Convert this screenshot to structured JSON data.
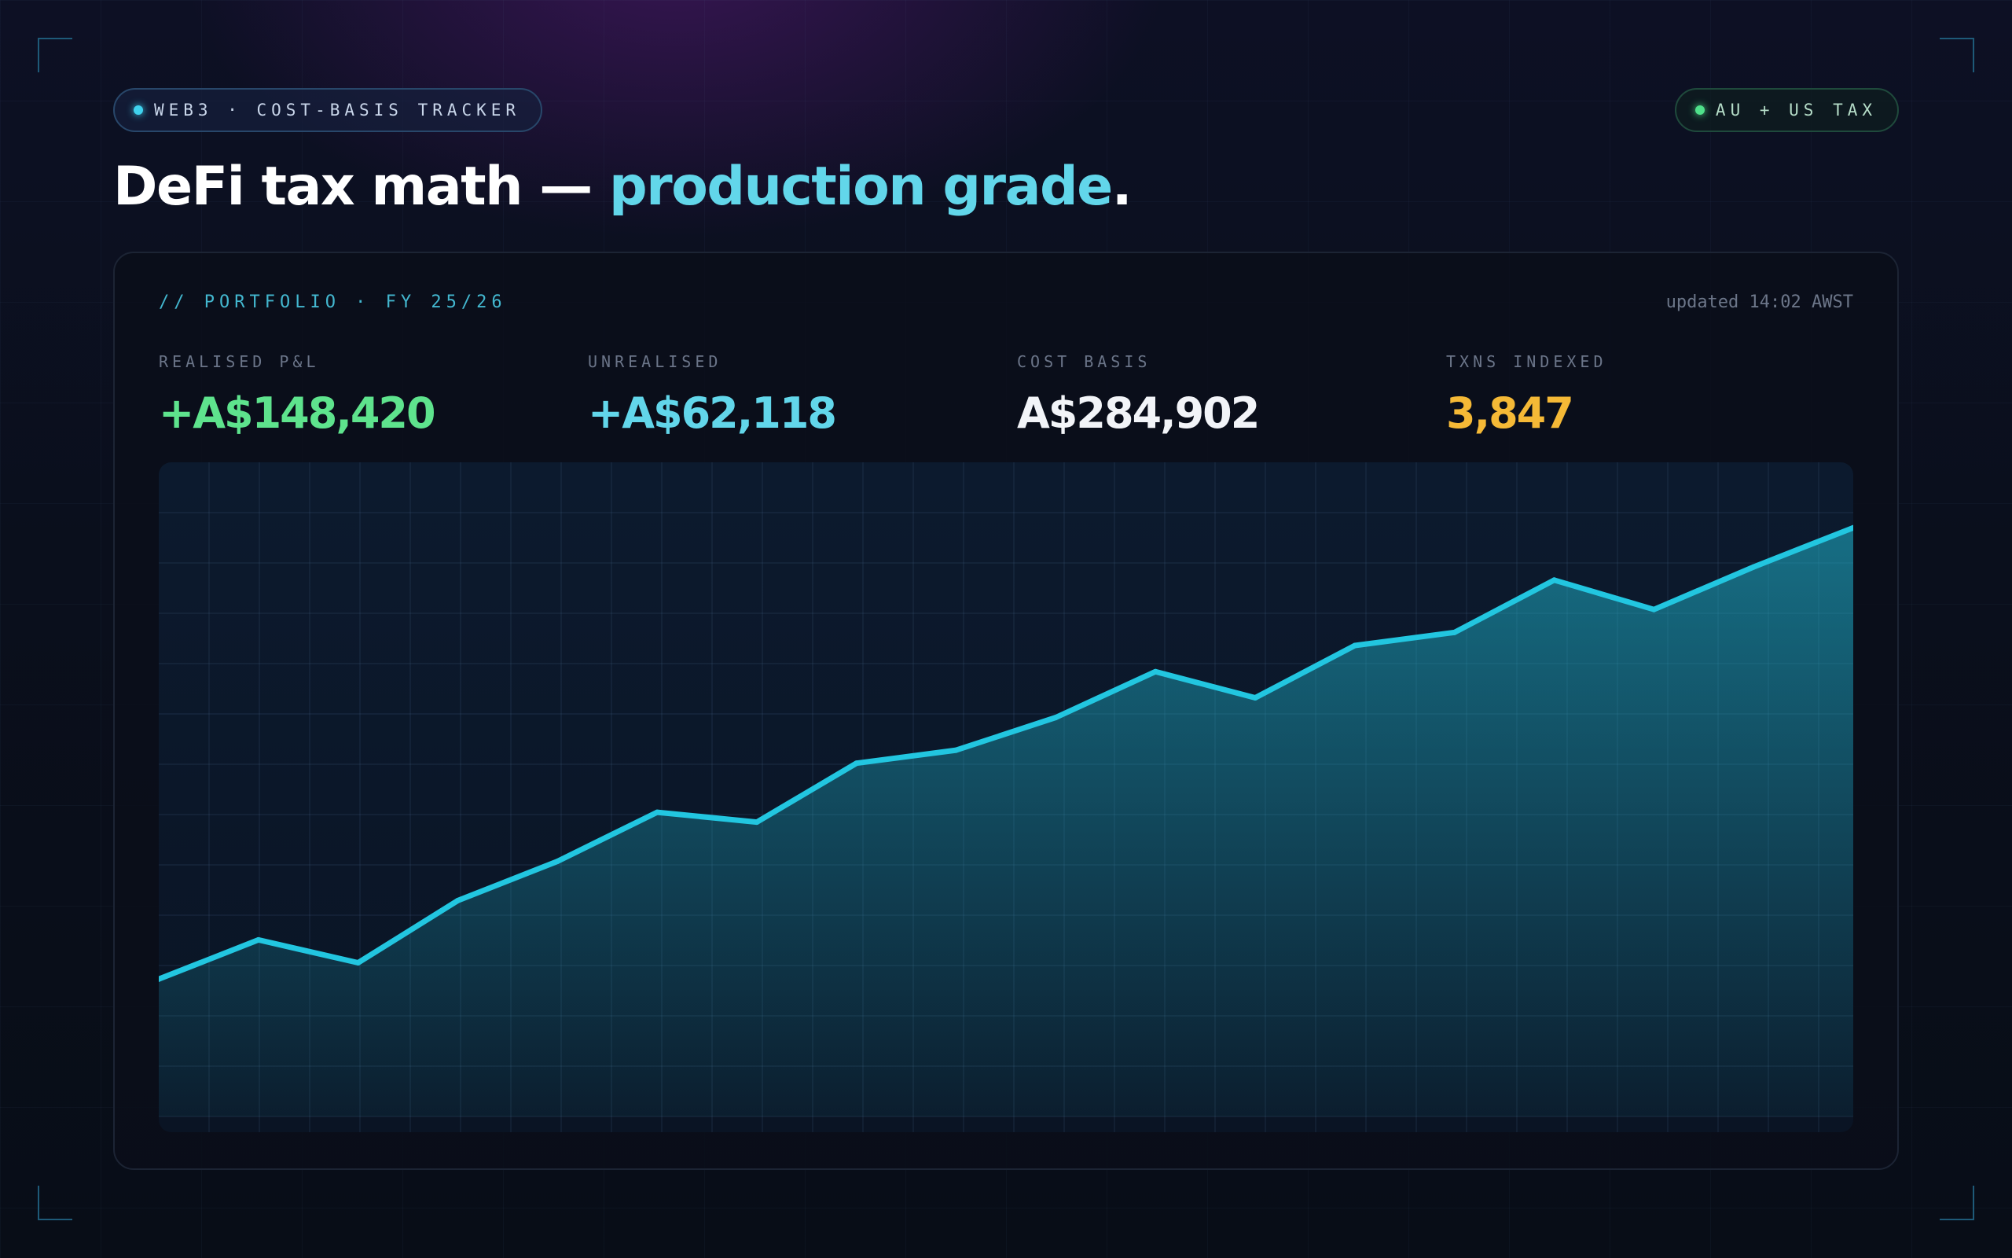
{
  "header": {
    "badge_left": "WEB3 · COST-BASIS TRACKER",
    "badge_right": "AU + US TAX",
    "headline_main": "DeFi tax math — ",
    "headline_accent": "production grade",
    "headline_end": "."
  },
  "card": {
    "label": "// PORTFOLIO · FY 25/26",
    "updated": "updated 14:02 AWST"
  },
  "stats": [
    {
      "label": "REALISED P&L",
      "value": "+A$148,420"
    },
    {
      "label": "UNREALISED",
      "value": "+A$62,118"
    },
    {
      "label": "COST BASIS",
      "value": "A$284,902"
    },
    {
      "label": "TXNS INDEXED",
      "value": "3,847"
    }
  ],
  "colors": {
    "line": "#22c6e0",
    "realised": "#5ee38d",
    "unrealised": "#62d6ea",
    "txns": "#f5b936"
  },
  "chart_data": {
    "type": "area",
    "title": "",
    "xlabel": "",
    "ylabel": "",
    "grid": true,
    "ylim": [
      0,
      100
    ],
    "series": [
      {
        "values": [
          21,
          27,
          23.5,
          33,
          39,
          46.5,
          45,
          54,
          56,
          61,
          68,
          64,
          72,
          74,
          82,
          77.5,
          84,
          90
        ]
      }
    ]
  }
}
